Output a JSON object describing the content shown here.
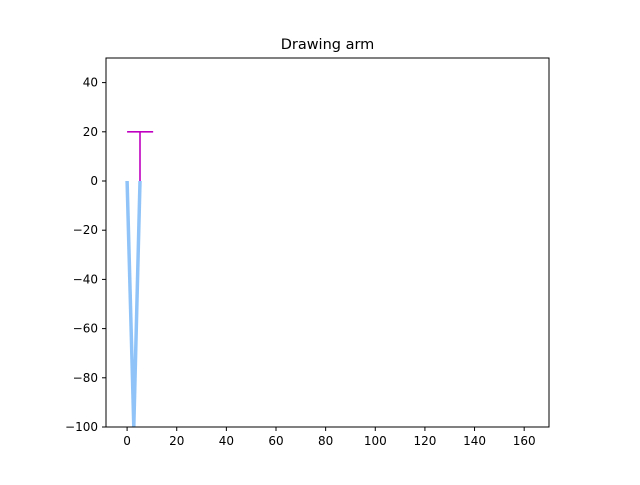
{
  "chart_data": {
    "type": "line",
    "title": "Drawing arm",
    "xlabel": "",
    "ylabel": "",
    "xlim": [
      -8.5,
      170
    ],
    "ylim": [
      -100,
      50
    ],
    "xticks": [
      0,
      20,
      40,
      60,
      80,
      100,
      120,
      140,
      160
    ],
    "yticks": [
      -100,
      -80,
      -60,
      -40,
      -20,
      0,
      20,
      40
    ],
    "grid": false,
    "series": [
      {
        "role": "arm",
        "color": "#90c4f8",
        "points": [
          [
            0,
            0
          ],
          [
            2.7,
            -100
          ],
          [
            5.2,
            0
          ]
        ]
      },
      {
        "role": "pen",
        "color": "#c000c0",
        "points": [
          [
            5.2,
            0
          ],
          [
            5.2,
            20
          ]
        ],
        "crossbar": [
          [
            0,
            20
          ],
          [
            10.5,
            20
          ]
        ]
      }
    ]
  }
}
